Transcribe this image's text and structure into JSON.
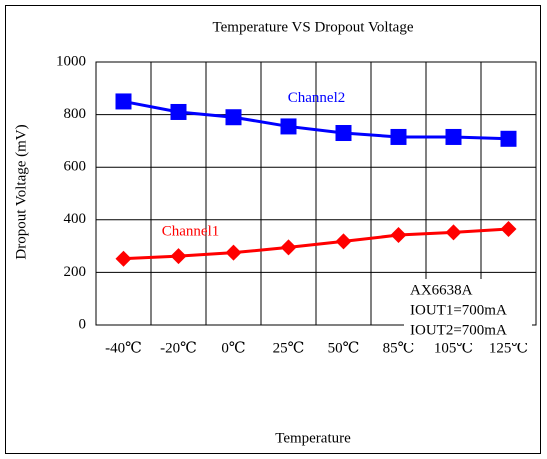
{
  "chart_data": {
    "type": "line",
    "title": "Temperature VS Dropout Voltage",
    "x_label": "Temperature",
    "y_label": "Dropout Voltage (mV)",
    "categories": [
      "-40℃",
      "-20℃",
      "0℃",
      "25℃",
      "50℃",
      "85℃",
      "105℃",
      "125℃"
    ],
    "series": [
      {
        "name": "Channel1",
        "color": "#ff0000",
        "marker": "diamond",
        "values": [
          252,
          262,
          275,
          295,
          318,
          342,
          352,
          365
        ]
      },
      {
        "name": "Channel2",
        "color": "#0000ff",
        "marker": "square",
        "values": [
          850,
          810,
          790,
          755,
          730,
          715,
          715,
          708
        ]
      }
    ],
    "ylim": [
      0,
      1000
    ],
    "yticks": [
      0,
      200,
      400,
      600,
      800,
      1000
    ],
    "grid": true,
    "annotations": [
      "AX6638A",
      "IOUT1=700mA",
      "IOUT2=700mA"
    ]
  }
}
